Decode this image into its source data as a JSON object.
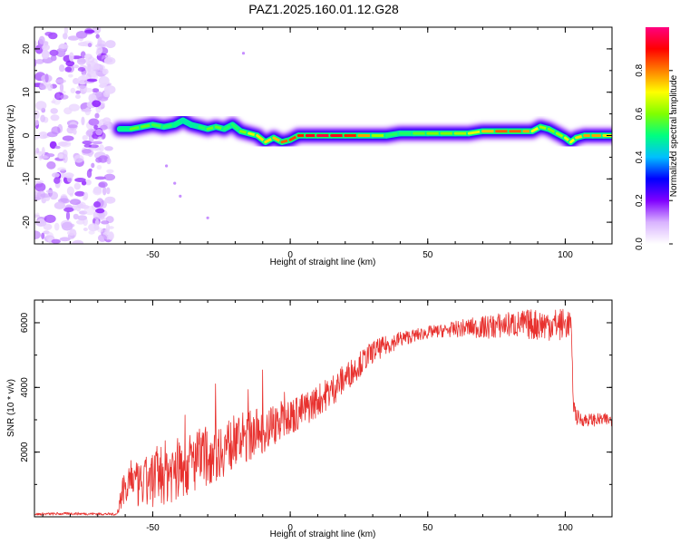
{
  "chart_data": [
    {
      "type": "heatmap",
      "title": "PAZ1.2025.160.01.12.G28",
      "xlabel": "Height of straight line (km)",
      "ylabel": "Frequency (Hz)",
      "xlim": [
        -93,
        117
      ],
      "ylim": [
        -25,
        25
      ],
      "x_ticks": [
        "-50",
        "0",
        "50",
        "100"
      ],
      "y_ticks": [
        "-20",
        "-10",
        "0",
        "10",
        "20"
      ],
      "colorbar": {
        "label": "Normalized spectral amplitude",
        "range": [
          0.0,
          1.0
        ],
        "ticks": [
          "0.0",
          "0.2",
          "0.4",
          "0.6",
          "0.8"
        ],
        "colors": [
          "#ffffff",
          "#d9b3ff",
          "#8000ff",
          "#0000ff",
          "#00bfff",
          "#00ff80",
          "#80ff00",
          "#ffff00",
          "#ff8000",
          "#ff0000",
          "#ff0080"
        ]
      },
      "noise_region_x": [
        -93,
        -65
      ],
      "ridge": {
        "x": [
          -62,
          -58,
          -54,
          -50,
          -46,
          -42,
          -39,
          -36,
          -33,
          -30,
          -27,
          -24,
          -21,
          -18,
          -15,
          -12,
          -9,
          -6,
          -3,
          0,
          3,
          6,
          10,
          15,
          20,
          25,
          30,
          35,
          40,
          45,
          50,
          55,
          60,
          65,
          70,
          75,
          80,
          85,
          88,
          91,
          94,
          97,
          100,
          102,
          104,
          107,
          110,
          114,
          117
        ],
        "freq": [
          1.5,
          1.5,
          2.0,
          2.5,
          2.0,
          2.5,
          3.5,
          2.5,
          2.0,
          1.5,
          2.0,
          1.5,
          2.5,
          1.0,
          0.5,
          0.0,
          -1.5,
          -0.5,
          -1.5,
          -1.0,
          0.0,
          0.0,
          0.0,
          0.0,
          0.0,
          0.0,
          0.0,
          0.0,
          0.5,
          0.5,
          0.5,
          0.5,
          0.5,
          0.5,
          1.0,
          1.0,
          1.0,
          1.0,
          1.0,
          2.0,
          1.5,
          0.5,
          -0.5,
          -1.5,
          -0.5,
          0.0,
          0.0,
          0.0,
          0.0
        ],
        "amp": [
          0.45,
          0.55,
          0.6,
          0.55,
          0.55,
          0.5,
          0.5,
          0.45,
          0.5,
          0.55,
          0.6,
          0.55,
          0.5,
          0.55,
          0.65,
          0.7,
          0.75,
          0.7,
          0.8,
          0.85,
          0.85,
          0.9,
          0.95,
          0.95,
          0.9,
          0.85,
          0.7,
          0.55,
          0.5,
          0.55,
          0.6,
          0.6,
          0.6,
          0.65,
          0.7,
          0.8,
          0.85,
          0.8,
          0.75,
          0.65,
          0.6,
          0.6,
          0.65,
          0.7,
          0.7,
          0.75,
          0.8,
          0.75,
          0.7
        ]
      }
    },
    {
      "type": "line",
      "xlabel": "Height of straight line (km)",
      "ylabel": "SNR (10 * v/v)",
      "xlim": [
        -93,
        117
      ],
      "ylim": [
        0,
        6700
      ],
      "x_ticks": [
        "-50",
        "0",
        "50",
        "100"
      ],
      "y_ticks": [
        "2000",
        "4000",
        "6000"
      ],
      "color": "#e8322f",
      "series": [
        {
          "x": [
            -93,
            -80,
            -70,
            -63,
            -61,
            -58,
            -55,
            -50,
            -45,
            -40,
            -35,
            -30,
            -25,
            -20,
            -15,
            -10,
            -5,
            0,
            5,
            10,
            15,
            20,
            25,
            30,
            35,
            40,
            45,
            50,
            55,
            60,
            65,
            70,
            75,
            80,
            85,
            90,
            95,
            100,
            102,
            103,
            104,
            106,
            110,
            117
          ],
          "y": [
            80,
            100,
            90,
            80,
            800,
            1300,
            900,
            1200,
            1400,
            1500,
            1700,
            1900,
            2100,
            2300,
            2500,
            2700,
            2900,
            3100,
            3300,
            3600,
            3900,
            4300,
            4700,
            5100,
            5300,
            5500,
            5600,
            5700,
            5750,
            5800,
            5850,
            5850,
            5900,
            5950,
            5950,
            5950,
            5950,
            5950,
            6000,
            3500,
            3100,
            3000,
            3000,
            3000
          ],
          "jitter": [
            40,
            40,
            40,
            40,
            500,
            600,
            700,
            900,
            1000,
            1000,
            1000,
            950,
            900,
            850,
            800,
            750,
            650,
            600,
            550,
            500,
            500,
            450,
            400,
            350,
            300,
            250,
            200,
            200,
            200,
            250,
            300,
            350,
            400,
            400,
            450,
            500,
            500,
            500,
            400,
            300,
            250,
            200,
            200,
            200
          ]
        }
      ]
    }
  ]
}
